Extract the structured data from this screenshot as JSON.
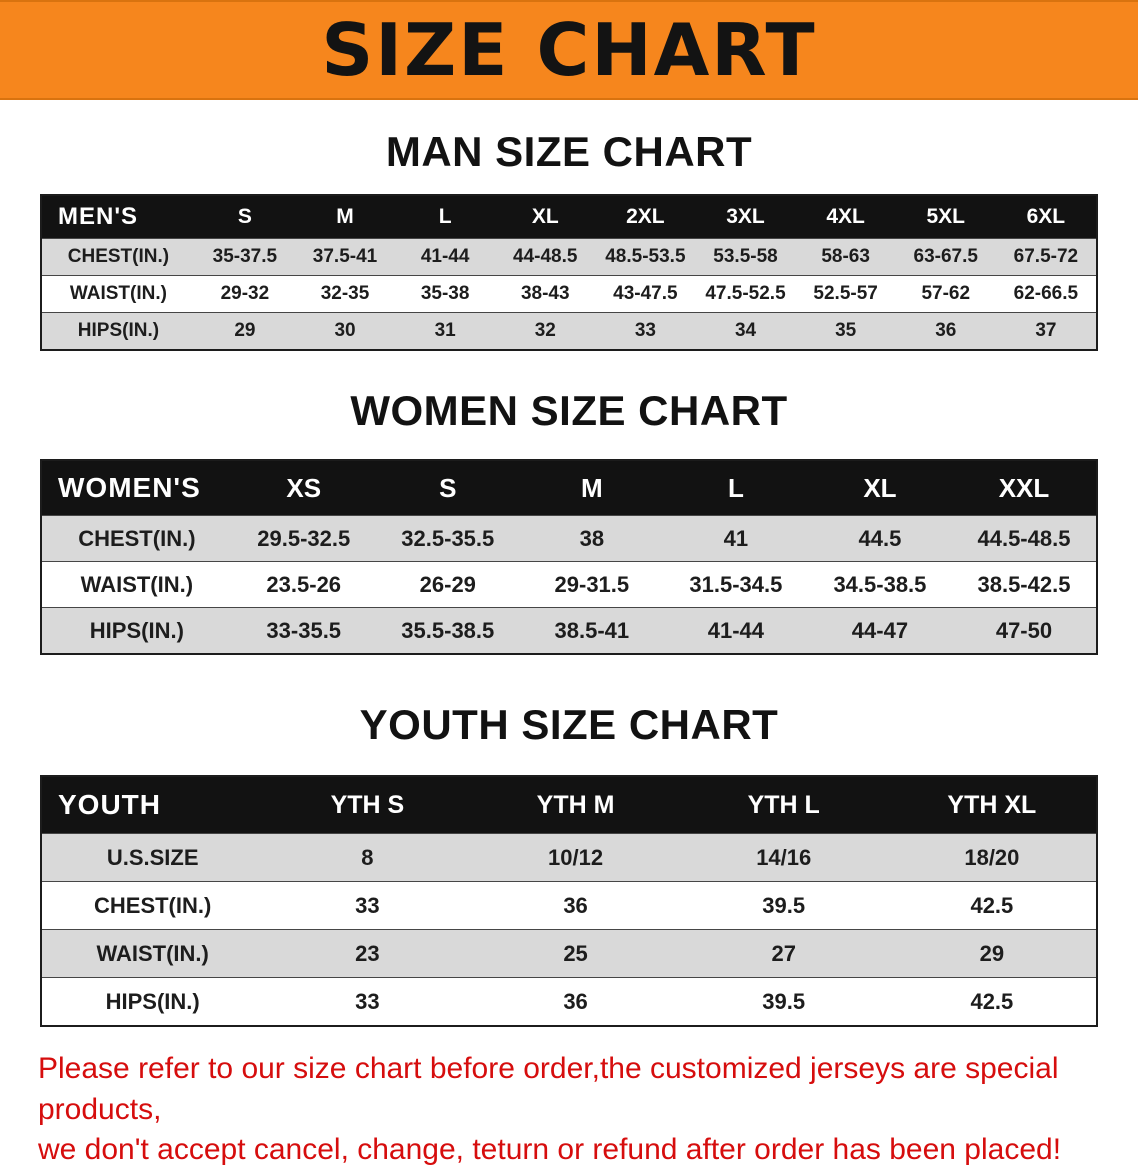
{
  "banner": {
    "title": "SIZE CHART"
  },
  "sections": [
    {
      "heading": "MAN SIZE CHART",
      "table": {
        "name": "mens",
        "header": [
          "MEN'S",
          "S",
          "M",
          "L",
          "XL",
          "2XL",
          "3XL",
          "4XL",
          "5XL",
          "6XL"
        ],
        "rows": [
          {
            "label": "CHEST(IN.)",
            "values": [
              "35-37.5",
              "37.5-41",
              "41-44",
              "44-48.5",
              "48.5-53.5",
              "53.5-58",
              "58-63",
              "63-67.5",
              "67.5-72"
            ]
          },
          {
            "label": "WAIST(IN.)",
            "values": [
              "29-32",
              "32-35",
              "35-38",
              "38-43",
              "43-47.5",
              "47.5-52.5",
              "52.5-57",
              "57-62",
              "62-66.5"
            ]
          },
          {
            "label": "HIPS(IN.)",
            "values": [
              "29",
              "30",
              "31",
              "32",
              "33",
              "34",
              "35",
              "36",
              "37"
            ]
          }
        ]
      }
    },
    {
      "heading": "WOMEN SIZE CHART",
      "table": {
        "name": "womens",
        "header": [
          "WOMEN'S",
          "XS",
          "S",
          "M",
          "L",
          "XL",
          "XXL"
        ],
        "rows": [
          {
            "label": "CHEST(IN.)",
            "values": [
              "29.5-32.5",
              "32.5-35.5",
              "38",
              "41",
              "44.5",
              "44.5-48.5"
            ]
          },
          {
            "label": "WAIST(IN.)",
            "values": [
              "23.5-26",
              "26-29",
              "29-31.5",
              "31.5-34.5",
              "34.5-38.5",
              "38.5-42.5"
            ]
          },
          {
            "label": "HIPS(IN.)",
            "values": [
              "33-35.5",
              "35.5-38.5",
              "38.5-41",
              "41-44",
              "44-47",
              "47-50"
            ]
          }
        ]
      }
    },
    {
      "heading": "YOUTH SIZE CHART",
      "table": {
        "name": "youth",
        "header": [
          "YOUTH",
          "YTH S",
          "YTH M",
          "YTH L",
          "YTH XL"
        ],
        "rows": [
          {
            "label": "U.S.SIZE",
            "values": [
              "8",
              "10/12",
              "14/16",
              "18/20"
            ]
          },
          {
            "label": "CHEST(IN.)",
            "values": [
              "33",
              "36",
              "39.5",
              "42.5"
            ]
          },
          {
            "label": "WAIST(IN.)",
            "values": [
              "23",
              "25",
              "27",
              "29"
            ]
          },
          {
            "label": "HIPS(IN.)",
            "values": [
              "33",
              "36",
              "39.5",
              "42.5"
            ]
          }
        ]
      }
    }
  ],
  "disclaimer": {
    "line1": "Please refer to our size chart before order,the customized jerseys are special products,",
    "line2": "we don't accept cancel, change, teturn or refund after order has been placed!"
  },
  "colors": {
    "banner_bg": "#f6861d",
    "header_bg": "#121212",
    "row_alt_bg": "#d9d9d9",
    "disclaimer_red": "#d60d0d"
  }
}
